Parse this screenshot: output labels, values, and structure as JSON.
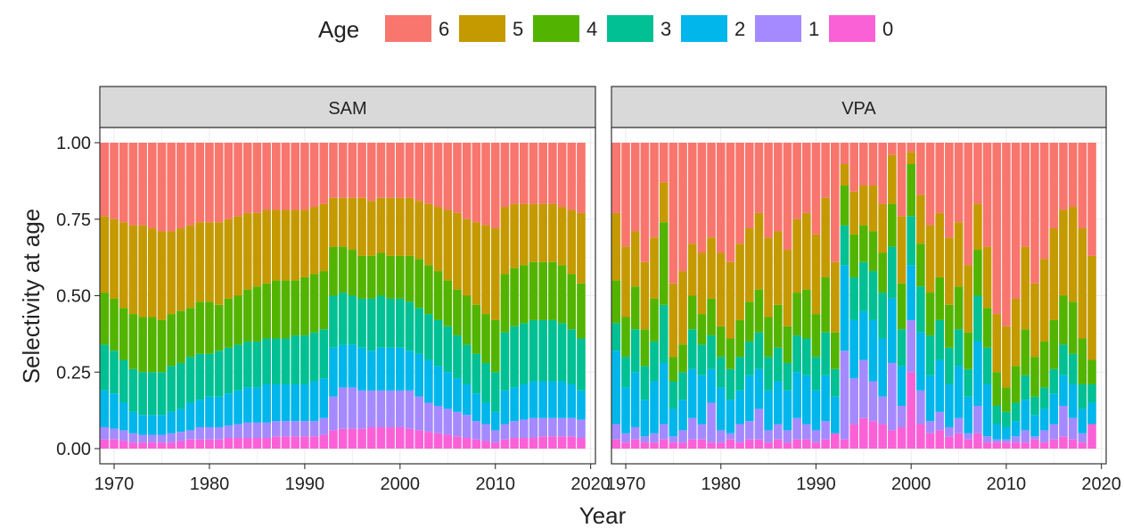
{
  "chart_data": {
    "type": "bar",
    "stacked": true,
    "layout": "facet-wrap",
    "xlabel": "Year",
    "ylabel": "Selectivity at age",
    "xlim": [
      1968.5,
      2020.5
    ],
    "ylim": [
      0,
      1
    ],
    "x_ticks": [
      1970,
      1980,
      1990,
      2000,
      2010,
      2020
    ],
    "y_ticks": [
      0,
      0.25,
      0.5,
      0.75,
      1.0
    ],
    "y_tick_labels": [
      "0.00",
      "0.25",
      "0.50",
      "0.75",
      "1.00"
    ],
    "grid": true,
    "theme": "bw",
    "legend": {
      "title": "Age",
      "position": "top",
      "order": [
        "6",
        "5",
        "4",
        "3",
        "2",
        "1",
        "0"
      ],
      "colors": {
        "6": "#F8766D",
        "5": "#C49A00",
        "4": "#53B400",
        "3": "#00C094",
        "2": "#00B6EB",
        "1": "#A58AFF",
        "0": "#FB61D7"
      }
    },
    "x": [
      1969,
      1970,
      1971,
      1972,
      1973,
      1974,
      1975,
      1976,
      1977,
      1978,
      1979,
      1980,
      1981,
      1982,
      1983,
      1984,
      1985,
      1986,
      1987,
      1988,
      1989,
      1990,
      1991,
      1992,
      1993,
      1994,
      1995,
      1996,
      1997,
      1998,
      1999,
      2000,
      2001,
      2002,
      2003,
      2004,
      2005,
      2006,
      2007,
      2008,
      2009,
      2010,
      2011,
      2012,
      2013,
      2014,
      2015,
      2016,
      2017,
      2018,
      2019
    ],
    "panels": [
      {
        "name": "SAM",
        "cumulative": {
          "0": [
            0.03,
            0.03,
            0.025,
            0.02,
            0.02,
            0.02,
            0.02,
            0.02,
            0.025,
            0.03,
            0.03,
            0.03,
            0.03,
            0.035,
            0.035,
            0.035,
            0.035,
            0.035,
            0.04,
            0.04,
            0.04,
            0.04,
            0.04,
            0.045,
            0.06,
            0.065,
            0.065,
            0.065,
            0.07,
            0.07,
            0.07,
            0.07,
            0.065,
            0.06,
            0.055,
            0.05,
            0.045,
            0.04,
            0.035,
            0.03,
            0.025,
            0.02,
            0.03,
            0.035,
            0.035,
            0.035,
            0.04,
            0.04,
            0.04,
            0.04,
            0.035
          ],
          "1": [
            0.07,
            0.065,
            0.06,
            0.05,
            0.045,
            0.045,
            0.045,
            0.05,
            0.055,
            0.06,
            0.07,
            0.07,
            0.07,
            0.075,
            0.08,
            0.085,
            0.085,
            0.085,
            0.09,
            0.09,
            0.09,
            0.09,
            0.09,
            0.1,
            0.17,
            0.2,
            0.2,
            0.19,
            0.19,
            0.19,
            0.19,
            0.19,
            0.19,
            0.17,
            0.15,
            0.14,
            0.13,
            0.12,
            0.11,
            0.09,
            0.08,
            0.06,
            0.08,
            0.09,
            0.095,
            0.1,
            0.1,
            0.1,
            0.1,
            0.1,
            0.095
          ],
          "2": [
            0.19,
            0.18,
            0.15,
            0.12,
            0.11,
            0.11,
            0.11,
            0.12,
            0.13,
            0.15,
            0.16,
            0.17,
            0.17,
            0.18,
            0.19,
            0.2,
            0.2,
            0.21,
            0.21,
            0.21,
            0.21,
            0.21,
            0.22,
            0.23,
            0.33,
            0.34,
            0.34,
            0.33,
            0.32,
            0.33,
            0.33,
            0.33,
            0.32,
            0.31,
            0.29,
            0.27,
            0.25,
            0.23,
            0.21,
            0.18,
            0.15,
            0.12,
            0.19,
            0.2,
            0.21,
            0.22,
            0.22,
            0.22,
            0.22,
            0.21,
            0.19
          ],
          "3": [
            0.34,
            0.32,
            0.29,
            0.26,
            0.25,
            0.25,
            0.25,
            0.27,
            0.28,
            0.3,
            0.31,
            0.31,
            0.32,
            0.33,
            0.34,
            0.35,
            0.35,
            0.36,
            0.36,
            0.36,
            0.37,
            0.37,
            0.38,
            0.39,
            0.5,
            0.51,
            0.5,
            0.49,
            0.49,
            0.5,
            0.49,
            0.49,
            0.48,
            0.46,
            0.44,
            0.42,
            0.4,
            0.37,
            0.34,
            0.31,
            0.28,
            0.25,
            0.38,
            0.4,
            0.41,
            0.42,
            0.42,
            0.42,
            0.41,
            0.39,
            0.36
          ],
          "4": [
            0.51,
            0.49,
            0.46,
            0.44,
            0.43,
            0.43,
            0.42,
            0.44,
            0.45,
            0.46,
            0.48,
            0.48,
            0.47,
            0.49,
            0.5,
            0.52,
            0.53,
            0.54,
            0.55,
            0.55,
            0.55,
            0.56,
            0.57,
            0.58,
            0.66,
            0.66,
            0.65,
            0.63,
            0.63,
            0.64,
            0.63,
            0.63,
            0.63,
            0.62,
            0.6,
            0.58,
            0.55,
            0.52,
            0.5,
            0.47,
            0.44,
            0.42,
            0.57,
            0.59,
            0.6,
            0.61,
            0.61,
            0.61,
            0.6,
            0.57,
            0.54
          ],
          "5": [
            0.76,
            0.75,
            0.74,
            0.73,
            0.73,
            0.72,
            0.71,
            0.71,
            0.72,
            0.73,
            0.74,
            0.74,
            0.74,
            0.75,
            0.76,
            0.77,
            0.77,
            0.78,
            0.78,
            0.78,
            0.78,
            0.78,
            0.79,
            0.8,
            0.82,
            0.82,
            0.82,
            0.82,
            0.81,
            0.82,
            0.82,
            0.82,
            0.82,
            0.81,
            0.8,
            0.79,
            0.78,
            0.77,
            0.75,
            0.74,
            0.73,
            0.72,
            0.79,
            0.8,
            0.8,
            0.8,
            0.8,
            0.8,
            0.79,
            0.78,
            0.77
          ]
        }
      },
      {
        "name": "VPA",
        "cumulative": {
          "0": [
            0.03,
            0.02,
            0.03,
            0.02,
            0.02,
            0.03,
            0.02,
            0.02,
            0.03,
            0.03,
            0.02,
            0.02,
            0.03,
            0.02,
            0.03,
            0.03,
            0.02,
            0.03,
            0.02,
            0.03,
            0.03,
            0.02,
            0.03,
            0.05,
            0.03,
            0.08,
            0.1,
            0.09,
            0.08,
            0.06,
            0.07,
            0.25,
            0.08,
            0.05,
            0.06,
            0.04,
            0.05,
            0.03,
            0.05,
            0.02,
            0.02,
            0.02,
            0.02,
            0.02,
            0.03,
            0.02,
            0.03,
            0.04,
            0.03,
            0.02,
            0.08
          ],
          "1": [
            0.08,
            0.05,
            0.07,
            0.04,
            0.05,
            0.08,
            0.04,
            0.06,
            0.1,
            0.08,
            0.15,
            0.06,
            0.05,
            0.08,
            0.09,
            0.13,
            0.06,
            0.08,
            0.06,
            0.1,
            0.08,
            0.06,
            0.09,
            0.05,
            0.32,
            0.23,
            0.29,
            0.22,
            0.17,
            0.28,
            0.14,
            0.42,
            0.19,
            0.09,
            0.12,
            0.07,
            0.1,
            0.05,
            0.14,
            0.04,
            0.03,
            0.03,
            0.04,
            0.06,
            0.04,
            0.06,
            0.08,
            0.14,
            0.1,
            0.05,
            0.08
          ],
          "2": [
            0.32,
            0.2,
            0.25,
            0.16,
            0.22,
            0.28,
            0.13,
            0.16,
            0.26,
            0.24,
            0.26,
            0.2,
            0.16,
            0.19,
            0.24,
            0.26,
            0.19,
            0.22,
            0.19,
            0.25,
            0.24,
            0.19,
            0.24,
            0.17,
            0.6,
            0.42,
            0.45,
            0.42,
            0.36,
            0.49,
            0.27,
            0.6,
            0.38,
            0.24,
            0.29,
            0.21,
            0.27,
            0.17,
            0.35,
            0.21,
            0.08,
            0.07,
            0.09,
            0.16,
            0.11,
            0.13,
            0.18,
            0.24,
            0.21,
            0.13,
            0.15
          ],
          "3": [
            0.41,
            0.3,
            0.39,
            0.27,
            0.35,
            0.47,
            0.22,
            0.25,
            0.39,
            0.34,
            0.37,
            0.3,
            0.26,
            0.3,
            0.35,
            0.38,
            0.3,
            0.33,
            0.28,
            0.37,
            0.36,
            0.3,
            0.38,
            0.26,
            0.73,
            0.56,
            0.61,
            0.58,
            0.51,
            0.66,
            0.39,
            0.76,
            0.53,
            0.37,
            0.42,
            0.33,
            0.39,
            0.26,
            0.5,
            0.33,
            0.14,
            0.12,
            0.15,
            0.24,
            0.17,
            0.2,
            0.26,
            0.34,
            0.31,
            0.21,
            0.21
          ],
          "4": [
            0.55,
            0.43,
            0.53,
            0.39,
            0.49,
            0.74,
            0.3,
            0.34,
            0.5,
            0.44,
            0.49,
            0.4,
            0.36,
            0.42,
            0.48,
            0.52,
            0.43,
            0.47,
            0.4,
            0.51,
            0.52,
            0.44,
            0.56,
            0.38,
            0.86,
            0.7,
            0.73,
            0.71,
            0.64,
            0.8,
            0.54,
            0.93,
            0.67,
            0.51,
            0.56,
            0.47,
            0.53,
            0.38,
            0.65,
            0.46,
            0.25,
            0.2,
            0.27,
            0.39,
            0.3,
            0.35,
            0.42,
            0.5,
            0.48,
            0.36,
            0.29
          ],
          "5": [
            0.77,
            0.66,
            0.71,
            0.61,
            0.69,
            0.87,
            0.54,
            0.58,
            0.67,
            0.64,
            0.69,
            0.64,
            0.61,
            0.67,
            0.72,
            0.77,
            0.69,
            0.71,
            0.65,
            0.75,
            0.77,
            0.7,
            0.82,
            0.61,
            0.93,
            0.84,
            0.86,
            0.86,
            0.8,
            0.96,
            0.76,
            0.97,
            0.83,
            0.73,
            0.77,
            0.69,
            0.74,
            0.6,
            0.8,
            0.66,
            0.44,
            0.4,
            0.49,
            0.66,
            0.54,
            0.62,
            0.72,
            0.78,
            0.79,
            0.72,
            0.63
          ]
        }
      }
    ]
  }
}
